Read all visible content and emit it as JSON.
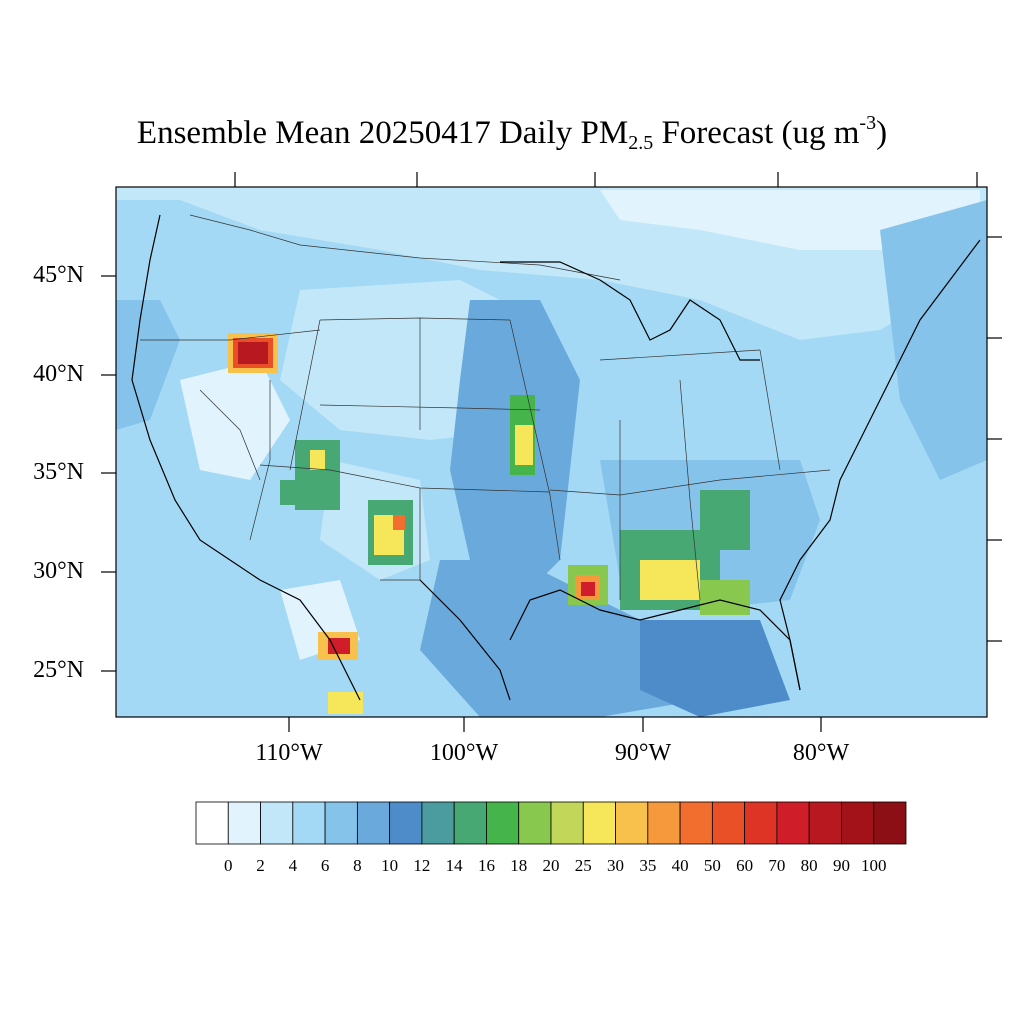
{
  "title": {
    "prefix": "Ensemble Mean 20250417 Daily PM",
    "subscript": "2.5",
    "middle": " Forecast (ug m",
    "superscript": "-3",
    "suffix": ")"
  },
  "map": {
    "type": "filled-contour-map",
    "region": "Continental United States",
    "background_color": "#9bd3f2",
    "lat_labels": [
      "45°N",
      "40°N",
      "35°N",
      "30°N",
      "25°N"
    ],
    "lon_labels": [
      "110°W",
      "100°W",
      "90°W",
      "80°W"
    ]
  },
  "colorbar": {
    "labels": [
      "0",
      "2",
      "4",
      "6",
      "8",
      "10",
      "12",
      "14",
      "16",
      "18",
      "20",
      "25",
      "30",
      "35",
      "40",
      "50",
      "60",
      "70",
      "80",
      "90",
      "100"
    ],
    "colors": [
      "#ffffff",
      "#e1f3fc",
      "#c2e7f8",
      "#a3d9f4",
      "#86c3ea",
      "#6aa9db",
      "#4d8cc9",
      "#4a9c9e",
      "#47a874",
      "#45b44a",
      "#88c84f",
      "#c2d65a",
      "#f6e659",
      "#f7c14b",
      "#f5993c",
      "#f26e2f",
      "#ea5028",
      "#de3426",
      "#cf1e29",
      "#b8181f",
      "#a31218",
      "#8b0f14"
    ]
  }
}
